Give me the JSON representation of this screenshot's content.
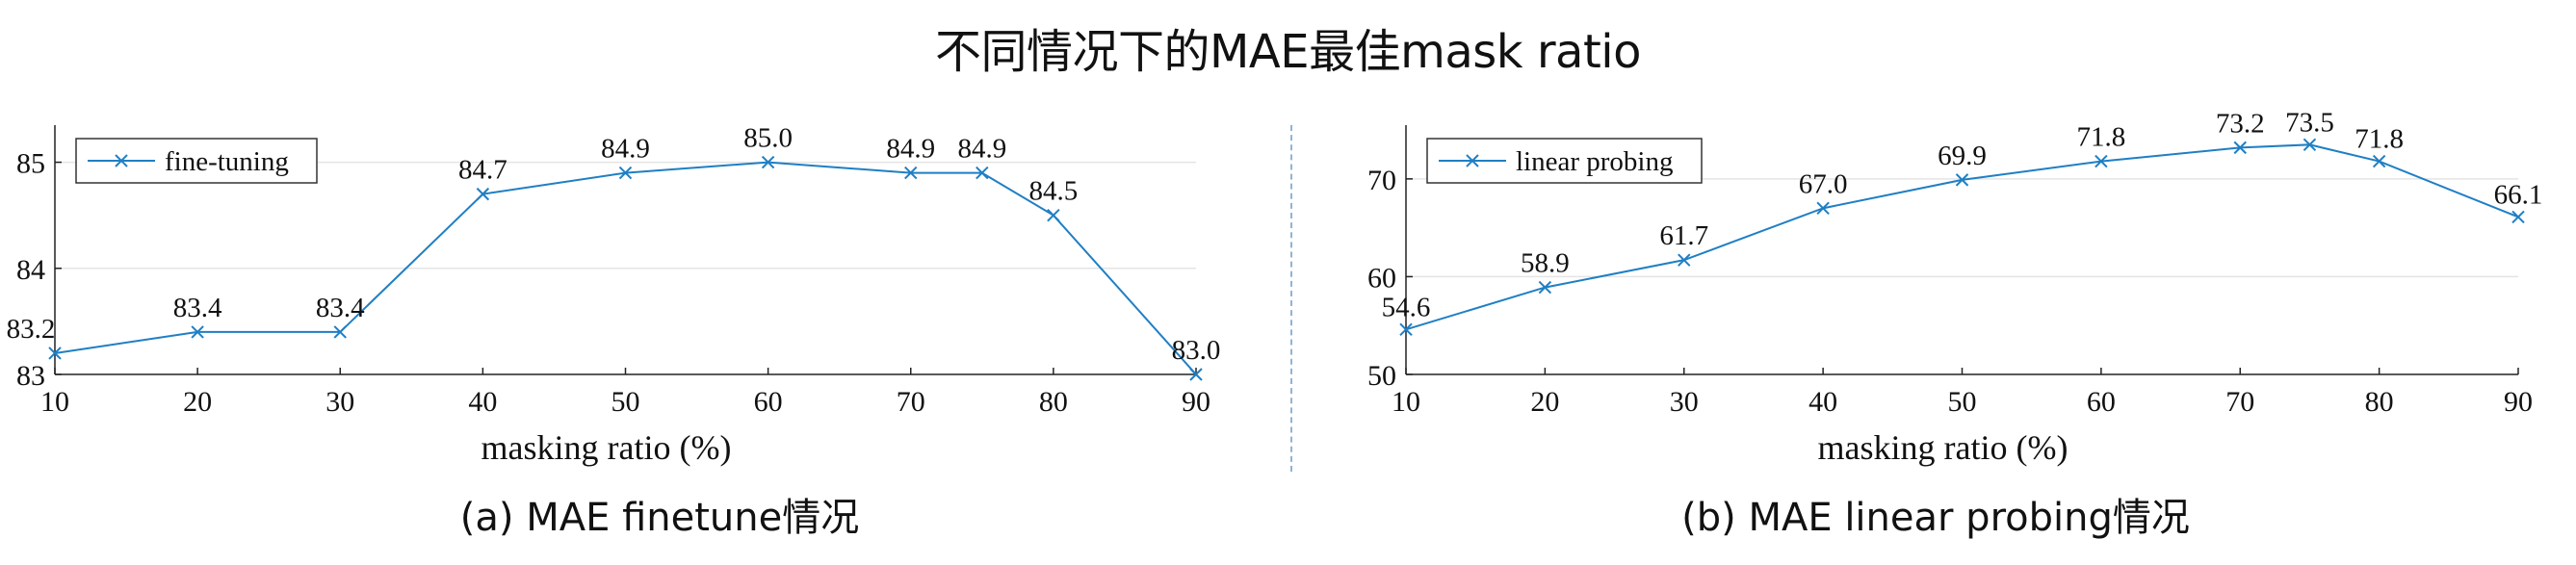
{
  "title": "不同情况下的MAE最佳mask ratio",
  "chart_data": [
    {
      "type": "line",
      "caption": "(a) MAE finetune情况",
      "x": [
        10,
        20,
        30,
        40,
        50,
        60,
        70,
        75,
        80,
        90
      ],
      "series": [
        {
          "name": "fine-tuning",
          "values": [
            83.2,
            83.4,
            83.4,
            84.7,
            84.9,
            85.0,
            84.9,
            84.9,
            84.5,
            83.0
          ]
        }
      ],
      "data_labels": [
        "83.2",
        "83.4",
        "83.4",
        "84.7",
        "84.9",
        "85.0",
        "84.9",
        "84.9",
        "84.5",
        "83.0"
      ],
      "xlabel": "masking ratio (%)",
      "ylabel": "",
      "xlim": [
        10,
        90
      ],
      "ylim": [
        83,
        85.35
      ],
      "xticks": [
        10,
        20,
        30,
        40,
        50,
        60,
        70,
        80,
        90
      ],
      "yticks": [
        83,
        84,
        85
      ],
      "grid": "horizontal",
      "legend": "top-left",
      "color": "#1f7fc4"
    },
    {
      "type": "line",
      "caption": "(b) MAE linear probing情况",
      "x": [
        10,
        20,
        30,
        40,
        50,
        60,
        70,
        75,
        80,
        90
      ],
      "series": [
        {
          "name": "linear probing",
          "values": [
            54.6,
            58.9,
            61.7,
            67.0,
            69.9,
            71.8,
            73.2,
            73.5,
            71.8,
            66.1
          ]
        }
      ],
      "data_labels": [
        "54.6",
        "58.9",
        "61.7",
        "67.0",
        "69.9",
        "71.8",
        "73.2",
        "73.5",
        "71.8",
        "66.1"
      ],
      "xlabel": "masking ratio (%)",
      "ylabel": "",
      "xlim": [
        10,
        90
      ],
      "ylim": [
        50,
        75.5
      ],
      "xticks": [
        10,
        20,
        30,
        40,
        50,
        60,
        70,
        80,
        90
      ],
      "yticks": [
        50,
        60,
        70
      ],
      "grid": "horizontal",
      "legend": "top-left",
      "color": "#1f7fc4"
    }
  ]
}
